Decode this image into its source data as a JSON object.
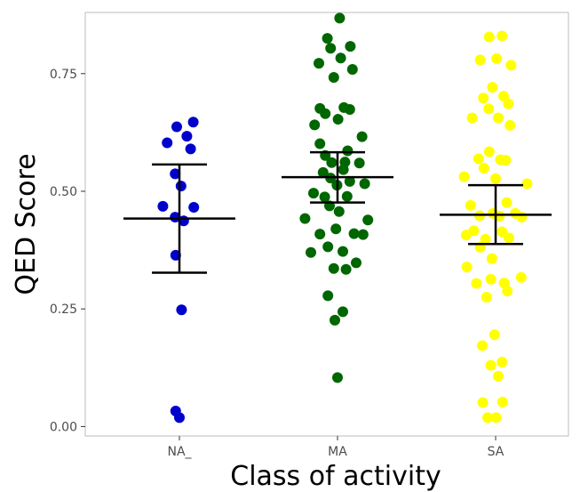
{
  "chart_data": {
    "type": "scatter",
    "title": "",
    "xlabel": "Class of activity",
    "ylabel": "QED Score",
    "categories": [
      "NA_",
      "MA",
      "SA"
    ],
    "ylim": [
      -0.02,
      0.88
    ],
    "yticks": [
      0.0,
      0.25,
      0.5,
      0.75
    ],
    "ytick_labels": [
      "0.00",
      "0.25",
      "0.50",
      "0.75"
    ],
    "grid": false,
    "legend": "none",
    "series": [
      {
        "category": "NA_",
        "color": "#0000cc",
        "points": [
          [
            -0.05,
            0.637
          ],
          [
            0.26,
            0.647
          ],
          [
            -0.23,
            0.603
          ],
          [
            0.14,
            0.617
          ],
          [
            0.21,
            0.59
          ],
          [
            -0.08,
            0.537
          ],
          [
            0.03,
            0.511
          ],
          [
            -0.31,
            0.468
          ],
          [
            0.27,
            0.466
          ],
          [
            -0.08,
            0.445
          ],
          [
            0.08,
            0.437
          ],
          [
            -0.07,
            0.364
          ],
          [
            0.04,
            0.248
          ],
          [
            -0.07,
            0.033
          ],
          [
            0.0,
            0.019
          ]
        ],
        "mean": 0.442,
        "err_low": 0.327,
        "err_high": 0.557
      },
      {
        "category": "MA",
        "color": "#006600",
        "points": [
          [
            0.04,
            0.868
          ],
          [
            -0.19,
            0.825
          ],
          [
            -0.13,
            0.804
          ],
          [
            0.24,
            0.808
          ],
          [
            0.06,
            0.783
          ],
          [
            -0.35,
            0.772
          ],
          [
            0.28,
            0.759
          ],
          [
            -0.07,
            0.742
          ],
          [
            -0.33,
            0.676
          ],
          [
            0.12,
            0.678
          ],
          [
            0.23,
            0.674
          ],
          [
            -0.23,
            0.665
          ],
          [
            0.01,
            0.653
          ],
          [
            -0.43,
            0.641
          ],
          [
            0.46,
            0.616
          ],
          [
            -0.33,
            0.601
          ],
          [
            0.19,
            0.586
          ],
          [
            -0.23,
            0.576
          ],
          [
            -0.11,
            0.561
          ],
          [
            0.14,
            0.562
          ],
          [
            0.41,
            0.56
          ],
          [
            -0.27,
            0.54
          ],
          [
            0.11,
            0.546
          ],
          [
            -0.13,
            0.528
          ],
          [
            0.23,
            0.521
          ],
          [
            -0.01,
            0.513
          ],
          [
            0.51,
            0.516
          ],
          [
            -0.45,
            0.496
          ],
          [
            -0.24,
            0.488
          ],
          [
            0.18,
            0.489
          ],
          [
            -0.15,
            0.469
          ],
          [
            0.03,
            0.457
          ],
          [
            0.57,
            0.439
          ],
          [
            -0.61,
            0.442
          ],
          [
            -0.33,
            0.409
          ],
          [
            -0.03,
            0.42
          ],
          [
            0.31,
            0.41
          ],
          [
            0.48,
            0.408
          ],
          [
            -0.18,
            0.382
          ],
          [
            0.1,
            0.372
          ],
          [
            -0.5,
            0.37
          ],
          [
            0.35,
            0.348
          ],
          [
            -0.07,
            0.336
          ],
          [
            0.16,
            0.334
          ],
          [
            -0.18,
            0.278
          ],
          [
            0.1,
            0.244
          ],
          [
            -0.05,
            0.226
          ],
          [
            0.0,
            0.104
          ]
        ],
        "mean": 0.53,
        "err_low": 0.476,
        "err_high": 0.583
      },
      {
        "category": "SA",
        "color": "#ffff00",
        "points": [
          [
            -0.12,
            0.828
          ],
          [
            0.12,
            0.83
          ],
          [
            -0.29,
            0.779
          ],
          [
            0.02,
            0.782
          ],
          [
            0.29,
            0.768
          ],
          [
            -0.06,
            0.721
          ],
          [
            -0.23,
            0.698
          ],
          [
            0.15,
            0.702
          ],
          [
            -0.13,
            0.675
          ],
          [
            0.24,
            0.686
          ],
          [
            -0.44,
            0.656
          ],
          [
            0.05,
            0.656
          ],
          [
            0.27,
            0.64
          ],
          [
            -0.12,
            0.584
          ],
          [
            -0.32,
            0.569
          ],
          [
            0.09,
            0.567
          ],
          [
            0.19,
            0.566
          ],
          [
            -0.22,
            0.549
          ],
          [
            -0.59,
            0.531
          ],
          [
            0.0,
            0.527
          ],
          [
            0.59,
            0.516
          ],
          [
            -0.47,
            0.47
          ],
          [
            -0.05,
            0.453
          ],
          [
            0.21,
            0.476
          ],
          [
            0.37,
            0.453
          ],
          [
            -0.3,
            0.448
          ],
          [
            0.07,
            0.447
          ],
          [
            0.49,
            0.445
          ],
          [
            -0.41,
            0.416
          ],
          [
            0.12,
            0.414
          ],
          [
            0.25,
            0.401
          ],
          [
            -0.55,
            0.407
          ],
          [
            -0.19,
            0.398
          ],
          [
            -0.29,
            0.381
          ],
          [
            -0.07,
            0.357
          ],
          [
            -0.54,
            0.339
          ],
          [
            0.48,
            0.317
          ],
          [
            -0.36,
            0.304
          ],
          [
            0.16,
            0.305
          ],
          [
            -0.09,
            0.313
          ],
          [
            0.22,
            0.288
          ],
          [
            -0.17,
            0.275
          ],
          [
            -0.02,
            0.195
          ],
          [
            -0.25,
            0.172
          ],
          [
            0.12,
            0.137
          ],
          [
            -0.09,
            0.13
          ],
          [
            0.05,
            0.107
          ],
          [
            -0.24,
            0.051
          ],
          [
            0.13,
            0.052
          ],
          [
            -0.15,
            0.019
          ],
          [
            0.01,
            0.019
          ]
        ],
        "mean": 0.45,
        "err_low": 0.388,
        "err_high": 0.513
      }
    ]
  }
}
